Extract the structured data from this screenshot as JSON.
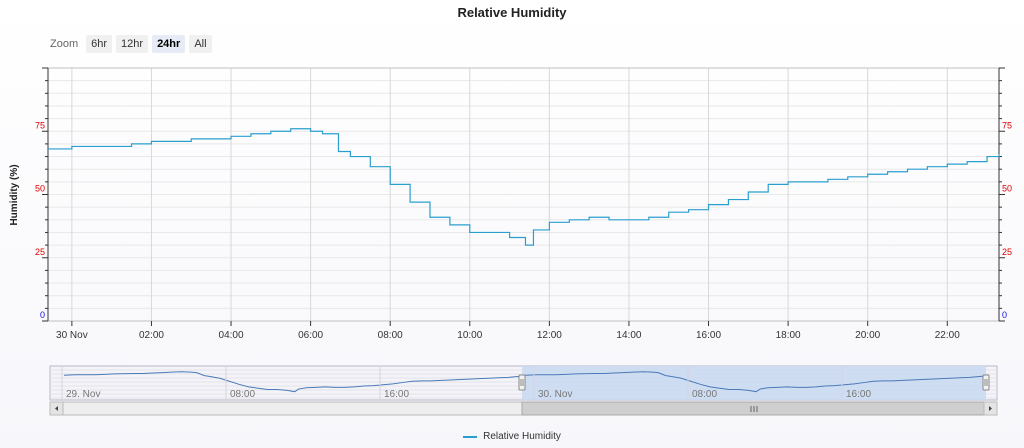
{
  "title": "Relative Humidity",
  "zoom": {
    "label": "Zoom",
    "buttons": [
      {
        "label": "6hr",
        "active": false
      },
      {
        "label": "12hr",
        "active": false
      },
      {
        "label": "24hr",
        "active": true
      },
      {
        "label": "All",
        "active": false
      }
    ]
  },
  "legend": {
    "label": "Relative Humidity"
  },
  "colors": {
    "series": "#2a9fcf",
    "axis_left_red": "#e00000",
    "axis_blue": "#1010e0",
    "navigator_selection": "#c8d8f2"
  },
  "chart_data": {
    "type": "line",
    "title": "Relative Humidity",
    "ylabel": "Humidity (%)",
    "ylim": [
      0,
      100
    ],
    "yticks": [
      0,
      25,
      50,
      75
    ],
    "xticks": [
      "30 Nov",
      "02:00",
      "04:00",
      "06:00",
      "08:00",
      "10:00",
      "12:00",
      "14:00",
      "16:00",
      "18:00",
      "20:00",
      "22:00"
    ],
    "xrange_hours": [
      -0.6,
      23.3
    ],
    "grid": true,
    "series": [
      {
        "name": "Relative Humidity",
        "x_hours": [
          -0.6,
          0,
          1,
          1.5,
          2,
          3,
          3.5,
          4,
          4.5,
          5,
          5.5,
          6,
          6.3,
          6.7,
          7,
          7.5,
          8,
          8.5,
          9,
          9.5,
          10,
          10.5,
          11,
          11.4,
          11.6,
          12,
          12.5,
          13,
          13.5,
          14,
          14.5,
          15,
          15.5,
          16,
          16.5,
          17,
          17.5,
          18,
          18.5,
          19,
          19.5,
          20,
          20.5,
          21,
          21.5,
          22,
          22.5,
          23,
          23.3
        ],
        "values": [
          68,
          69,
          69,
          70,
          71,
          72,
          72,
          73,
          74,
          75,
          76,
          75,
          74,
          67,
          65,
          61,
          54,
          47,
          41,
          38,
          35,
          35,
          33,
          30,
          36,
          39,
          40,
          41,
          40,
          40,
          41,
          43,
          44,
          46,
          48,
          51,
          54,
          55,
          55,
          56,
          57,
          58,
          59,
          60,
          61,
          62,
          63,
          65,
          66
        ]
      }
    ],
    "navigator": {
      "xticks": [
        "29. Nov",
        "08:00",
        "16:00",
        "30. Nov",
        "08:00",
        "16:00"
      ]
    }
  }
}
